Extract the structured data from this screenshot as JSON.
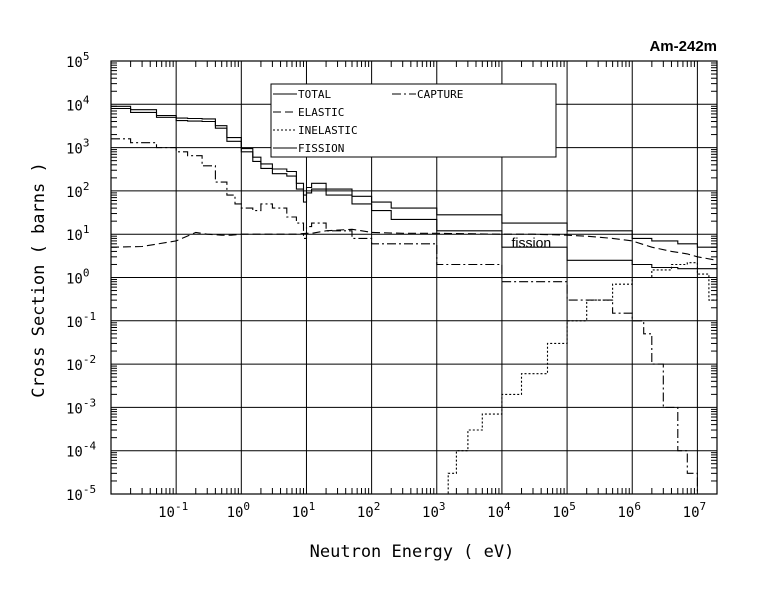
{
  "chart_data": {
    "type": "line",
    "title": "Am-242m",
    "xlabel": "Neutron Energy ( eV)",
    "ylabel": "Cross Section ( barns )",
    "xscale": "log",
    "yscale": "log",
    "xlim": [
      0.01,
      20000000
    ],
    "ylim": [
      1e-05,
      100000
    ],
    "grid": true,
    "legend_position": "top-center",
    "x_ticks": [
      {
        "base": "10",
        "exp": "-1",
        "value": 0.1
      },
      {
        "base": "10",
        "exp": "0",
        "value": 1
      },
      {
        "base": "10",
        "exp": "1",
        "value": 10
      },
      {
        "base": "10",
        "exp": "2",
        "value": 100
      },
      {
        "base": "10",
        "exp": "3",
        "value": 1000
      },
      {
        "base": "10",
        "exp": "4",
        "value": 10000
      },
      {
        "base": "10",
        "exp": "5",
        "value": 100000
      },
      {
        "base": "10",
        "exp": "6",
        "value": 1000000
      },
      {
        "base": "10",
        "exp": "7",
        "value": 10000000
      }
    ],
    "y_ticks": [
      {
        "base": "10",
        "exp": "-5",
        "value": 1e-05
      },
      {
        "base": "10",
        "exp": "-4",
        "value": 0.0001
      },
      {
        "base": "10",
        "exp": "-3",
        "value": 0.001
      },
      {
        "base": "10",
        "exp": "-2",
        "value": 0.01
      },
      {
        "base": "10",
        "exp": "-1",
        "value": 0.1
      },
      {
        "base": "10",
        "exp": "0",
        "value": 1
      },
      {
        "base": "10",
        "exp": "1",
        "value": 10
      },
      {
        "base": "10",
        "exp": "2",
        "value": 100
      },
      {
        "base": "10",
        "exp": "3",
        "value": 1000
      },
      {
        "base": "10",
        "exp": "4",
        "value": 10000
      },
      {
        "base": "10",
        "exp": "5",
        "value": 100000
      }
    ],
    "annotations": [
      {
        "text": "fission",
        "x": 20000,
        "y": 6.5
      }
    ],
    "series": [
      {
        "name": "TOTAL",
        "dash": "solid",
        "color": "#000000",
        "stepped": true,
        "x": [
          0.01,
          0.02,
          0.05,
          0.1,
          0.15,
          0.25,
          0.4,
          0.6,
          1,
          1.5,
          2,
          3,
          5,
          7,
          9,
          10,
          12,
          20,
          50,
          100,
          200,
          1000,
          10000,
          100000,
          1000000,
          2000000,
          5000000,
          10000000,
          20000000
        ],
        "y": [
          9000,
          7500,
          5500,
          4800,
          4700,
          4600,
          3200,
          1700,
          950,
          600,
          420,
          320,
          280,
          150,
          80,
          120,
          150,
          110,
          75,
          55,
          40,
          28,
          18,
          12,
          8,
          7,
          6,
          5,
          6
        ]
      },
      {
        "name": "FISSION",
        "dash": "solid",
        "color": "#000000",
        "stepped": true,
        "x": [
          0.01,
          0.02,
          0.05,
          0.1,
          0.15,
          0.25,
          0.4,
          0.6,
          1,
          1.5,
          2,
          3,
          5,
          7,
          9,
          10,
          12,
          20,
          50,
          100,
          200,
          1000,
          10000,
          100000,
          1000000,
          2000000,
          5000000,
          10000000,
          20000000
        ],
        "y": [
          8000,
          6500,
          5000,
          4200,
          4100,
          4000,
          2800,
          1400,
          800,
          480,
          330,
          250,
          220,
          110,
          55,
          90,
          110,
          80,
          50,
          35,
          22,
          12,
          5,
          2.5,
          2,
          1.7,
          1.6,
          1.6,
          1.8
        ]
      },
      {
        "name": "ELASTIC",
        "dash": "dashed",
        "color": "#000000",
        "stepped": false,
        "x": [
          0.01,
          0.03,
          0.1,
          0.2,
          0.3,
          0.5,
          0.7,
          1,
          1.5,
          3,
          5,
          7,
          10,
          12,
          20,
          50,
          100,
          300,
          1000,
          10000,
          30000,
          100000,
          200000,
          500000,
          1000000,
          2000000,
          4000000,
          7000000,
          10000000,
          20000000
        ],
        "y": [
          5,
          5.2,
          7,
          11,
          10,
          9.5,
          9.5,
          10,
          10,
          10,
          10,
          10,
          10.5,
          10.5,
          12,
          13,
          11,
          10.5,
          10.5,
          10,
          10,
          9.5,
          9,
          8,
          7,
          5,
          4,
          3.5,
          3,
          2.5
        ]
      },
      {
        "name": "INELASTIC",
        "dash": "dotted",
        "color": "#000000",
        "stepped": true,
        "x": [
          1000,
          1500,
          2000,
          3000,
          5000,
          10000,
          20000,
          50000,
          100000,
          200000,
          500000,
          1000000,
          2000000,
          4000000,
          7000000,
          10000000,
          15000000,
          20000000
        ],
        "y": [
          1e-05,
          3e-05,
          0.0001,
          0.0003,
          0.0007,
          0.002,
          0.006,
          0.03,
          0.1,
          0.3,
          0.7,
          1,
          1.5,
          2,
          2.2,
          1.2,
          0.3,
          0.4
        ]
      },
      {
        "name": "CAPTURE",
        "dash": "dashdot",
        "color": "#000000",
        "stepped": true,
        "x": [
          0.01,
          0.02,
          0.05,
          0.1,
          0.15,
          0.25,
          0.4,
          0.6,
          0.8,
          1,
          1.5,
          2,
          3,
          5,
          7,
          9,
          10,
          12,
          20,
          50,
          100,
          1000,
          10000,
          100000,
          500000,
          1000000,
          1500000,
          2000000,
          3000000,
          5000000,
          7000000,
          10000000
        ],
        "y": [
          1600,
          1300,
          1000,
          800,
          650,
          380,
          160,
          80,
          50,
          40,
          35,
          50,
          40,
          25,
          18,
          8,
          15,
          18,
          12,
          8,
          6,
          2,
          0.8,
          0.3,
          0.15,
          0.1,
          0.05,
          0.01,
          0.001,
          0.0001,
          3e-05,
          1e-05
        ]
      }
    ]
  }
}
